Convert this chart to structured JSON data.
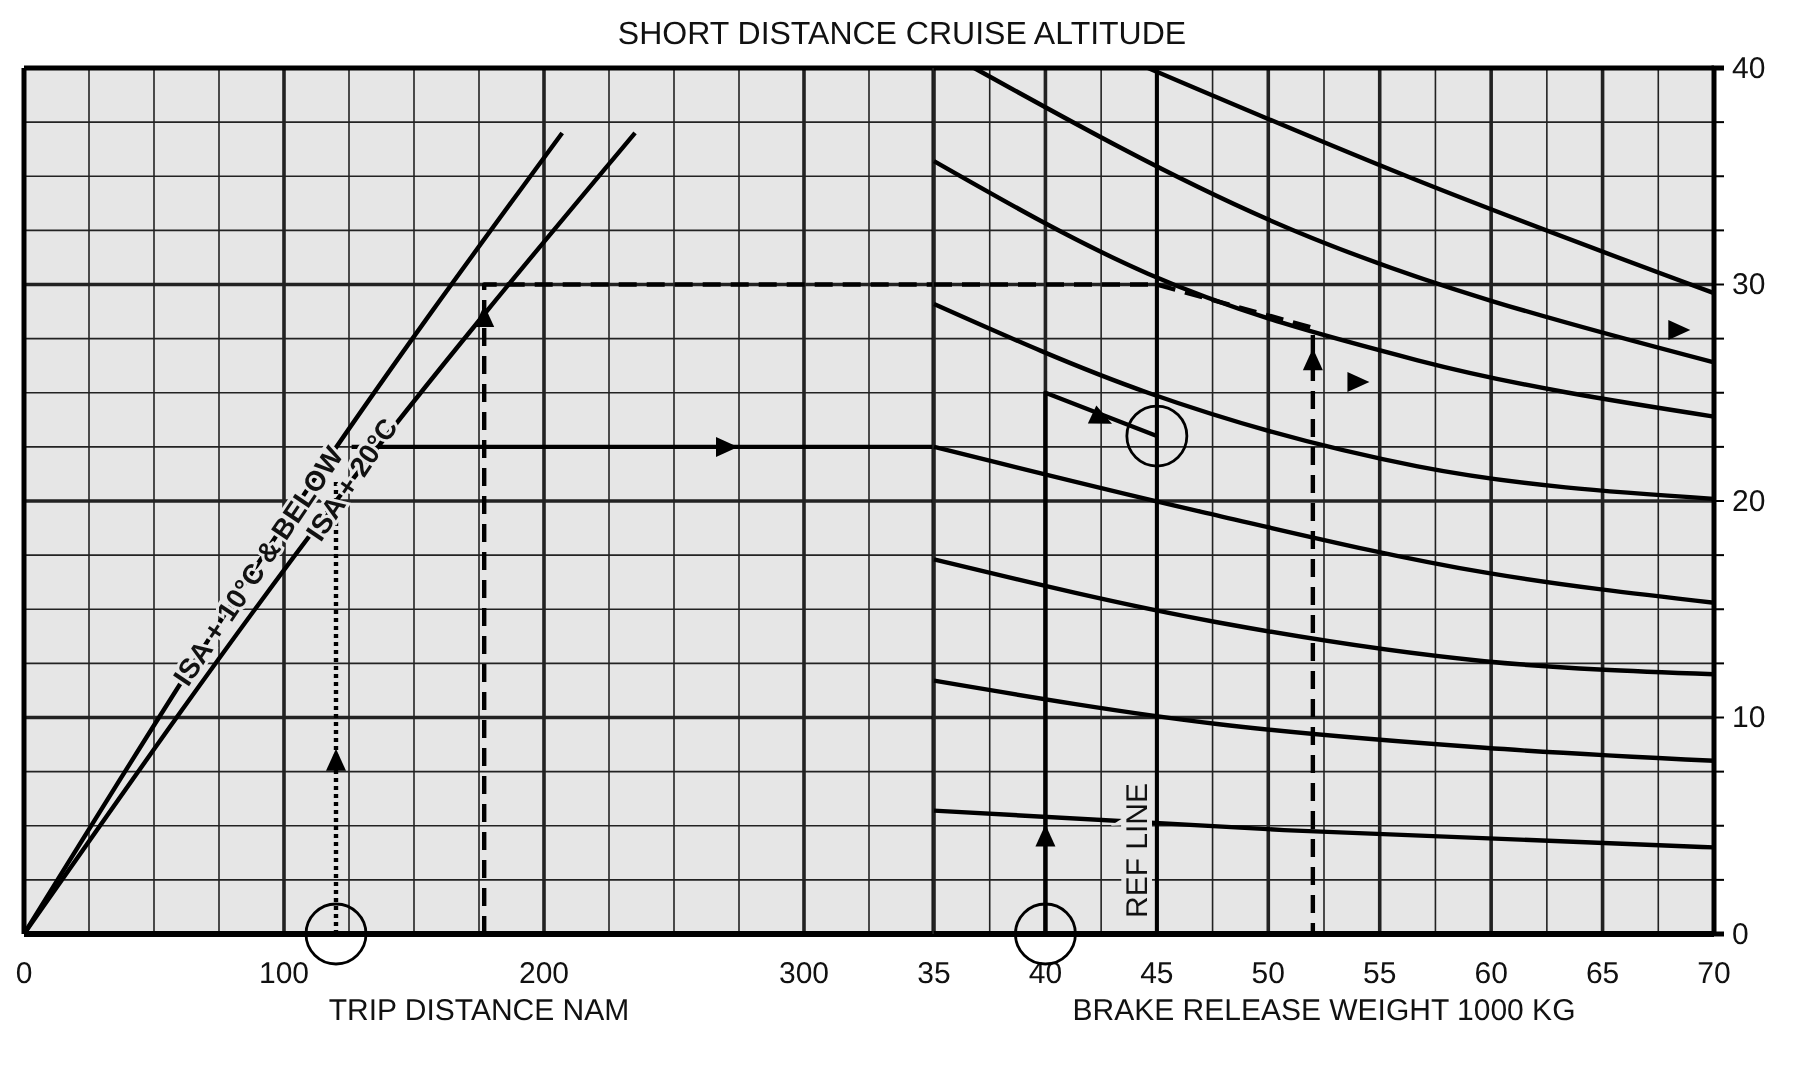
{
  "chart_data": [
    {
      "type": "line",
      "title": "SHORT DISTANCE CRUISE ALTITUDE",
      "xlabel": "TRIP DISTANCE NAM",
      "xlim": [
        0,
        350
      ],
      "ylim": [
        0,
        40
      ],
      "xticks": [
        0,
        {
          "value": 25,
          "label": null
        },
        {
          "value": 50,
          "label": null
        },
        {
          "value": 75,
          "label": null
        },
        100,
        {
          "value": 125,
          "label": null
        },
        {
          "value": 150,
          "label": null
        },
        {
          "value": 175,
          "label": null
        },
        200,
        {
          "value": 225,
          "label": null
        },
        {
          "value": 250,
          "label": null
        },
        {
          "value": 275,
          "label": null
        },
        300,
        {
          "value": 325,
          "label": null
        }
      ],
      "yticks": [
        0,
        {
          "value": 2.5,
          "label": null
        },
        {
          "value": 5,
          "label": null
        },
        {
          "value": 7.5,
          "label": null
        },
        10,
        {
          "value": 12.5,
          "label": null
        },
        {
          "value": 15,
          "label": null
        },
        {
          "value": 17.5,
          "label": null
        },
        20,
        {
          "value": 22.5,
          "label": null
        },
        {
          "value": 25,
          "label": null
        },
        {
          "value": 27.5,
          "label": null
        },
        30,
        {
          "value": 32.5,
          "label": null
        },
        {
          "value": 35,
          "label": null
        },
        {
          "value": 37.5,
          "label": null
        },
        40
      ],
      "tick_labels": "x",
      "grid": true,
      "series": [
        {
          "color": "#000000",
          "x": [
            0,
            106,
            207
          ],
          "values": [
            0,
            20,
            37
          ]
        },
        {
          "color": "#000000",
          "x": [
            0,
            120,
            235
          ],
          "values": [
            0,
            20,
            37
          ]
        },
        {
          "color": "#000000",
          "x": [
            120,
            120
          ],
          "values": [
            0,
            21
          ],
          "line_style": "dotted"
        },
        {
          "color": "#000000",
          "x": [
            126,
            350
          ],
          "values": [
            22.5,
            22.5
          ]
        },
        {
          "color": "#000000",
          "x": [
            177,
            177,
            350
          ],
          "values": [
            0,
            30,
            30
          ],
          "line_style": "dashed"
        }
      ],
      "annotations": [
        {
          "text": "ISA + 10°C & BELOW",
          "x": 90,
          "y": 17
        },
        {
          "text": "ISA + 20°C",
          "x": 126,
          "y": 21
        }
      ]
    },
    {
      "type": "line",
      "xlabel": "BRAKE RELEASE WEIGHT   1000 KG",
      "xlim": [
        35,
        70
      ],
      "ylim": [
        0,
        40
      ],
      "xticks": [
        35,
        {
          "value": 37.5,
          "label": null
        },
        40,
        {
          "value": 42.5,
          "label": null
        },
        45,
        {
          "value": 47.5,
          "label": null
        },
        50,
        {
          "value": 52.5,
          "label": null
        },
        55,
        {
          "value": 57.5,
          "label": null
        },
        60,
        {
          "value": 62.5,
          "label": null
        },
        65,
        {
          "value": 67.5,
          "label": null
        },
        70
      ],
      "yticks": [
        0,
        {
          "value": 2.5,
          "label": null
        },
        {
          "value": 5,
          "label": null
        },
        {
          "value": 7.5,
          "label": null
        },
        10,
        {
          "value": 12.5,
          "label": null
        },
        {
          "value": 15,
          "label": null
        },
        {
          "value": 17.5,
          "label": null
        },
        20,
        {
          "value": 22.5,
          "label": null
        },
        {
          "value": 25,
          "label": null
        },
        {
          "value": 27.5,
          "label": null
        },
        30,
        {
          "value": 32.5,
          "label": null
        },
        {
          "value": 35,
          "label": null
        },
        {
          "value": 37.5,
          "label": null
        },
        40
      ],
      "grid": true,
      "series": [
        {
          "color": "#000000",
          "x": [
            44.6,
            56.7,
            70
          ],
          "values": [
            40,
            34.8,
            29.6
          ]
        },
        {
          "color": "#000000",
          "x": [
            36.8,
            50,
            70
          ],
          "values": [
            40,
            33,
            26.4
          ]
        },
        {
          "color": "#000000",
          "x": [
            35,
            44.6,
            56.7,
            70
          ],
          "values": [
            35.7,
            30.5,
            26.5,
            23.9
          ]
        },
        {
          "color": "#000000",
          "x": [
            35,
            44.6,
            56.7,
            70
          ],
          "values": [
            29.1,
            25,
            21.6,
            20.1
          ]
        },
        {
          "color": "#000000",
          "x": [
            35,
            47,
            59.7,
            70
          ],
          "values": [
            22.5,
            19.5,
            16.7,
            15.3
          ]
        },
        {
          "color": "#000000",
          "x": [
            35,
            47.7,
            59.7,
            70
          ],
          "values": [
            17.3,
            14.4,
            12.6,
            12
          ]
        },
        {
          "color": "#000000",
          "x": [
            35,
            47.7,
            59.7,
            70
          ],
          "values": [
            11.7,
            9.7,
            8.6,
            8
          ]
        },
        {
          "color": "#000000",
          "x": [
            35,
            50.7,
            70
          ],
          "values": [
            5.7,
            4.8,
            4
          ]
        },
        {
          "color": "#000000",
          "x": [
            40,
            40,
            45
          ],
          "values": [
            0,
            25,
            23
          ]
        },
        {
          "color": "#000000",
          "x": [
            35,
            45,
            52,
            52
          ],
          "values": [
            30,
            30,
            28,
            0
          ],
          "line_style": "dashed"
        }
      ],
      "ref_lines": [
        {
          "axis": "x",
          "value": 45,
          "label": "REF LINE"
        }
      ]
    }
  ]
}
